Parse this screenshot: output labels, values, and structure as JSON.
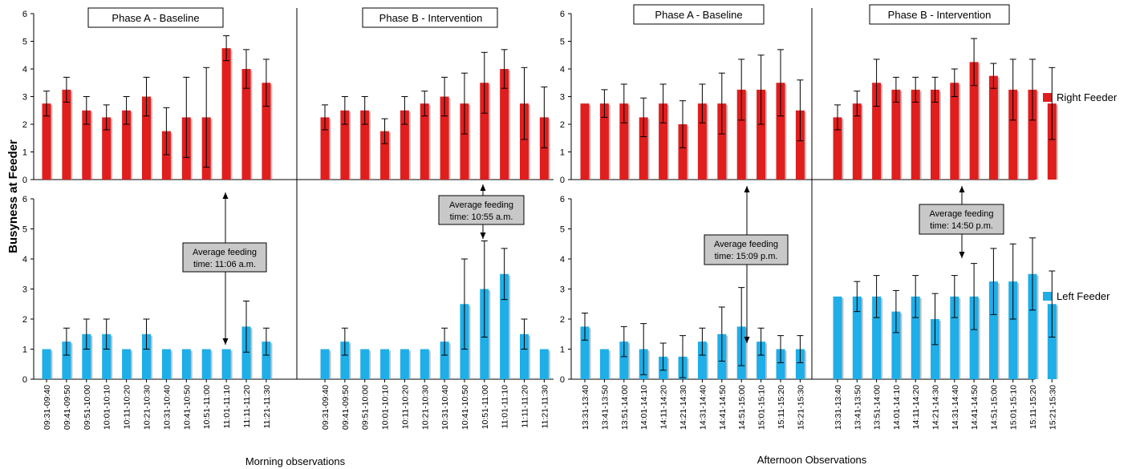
{
  "labels": {
    "ylabel": "Busyness at Feeder",
    "morning_xlabel": "Morning observations",
    "afternoon_xlabel": "Afternoon Observations",
    "phase_a": "Phase A - Baseline",
    "phase_b": "Phase B - Intervention",
    "legend_right": "Right Feeder",
    "legend_left": "Left Feeder"
  },
  "colors": {
    "right_feeder": "#e01e1e",
    "left_feeder": "#1eaee8",
    "annotation_fill": "#c8c8c8"
  },
  "y_ticks": [
    "0",
    "1",
    "2",
    "3",
    "4",
    "5",
    "6"
  ],
  "annotations": {
    "morning_a": [
      "Average feeding",
      "time: 11:06 a.m."
    ],
    "morning_b": [
      "Average feeding",
      "time: 10:55 a.m."
    ],
    "afternoon_a": [
      "Average feeding",
      "time: 15:09 p.m."
    ],
    "afternoon_b": [
      "Average feeding",
      "time: 14:50 p.m."
    ]
  },
  "chart_data": [
    {
      "type": "bar",
      "name": "morning",
      "ylim": [
        0,
        6
      ],
      "grid": false,
      "legend_position": "right",
      "phase_a": {
        "categories": [
          "09:31-09:40",
          "09:41-09:50",
          "09:51-10:00",
          "10:01-10:10",
          "10:11-10:20",
          "10:21-10:30",
          "10:31-10:40",
          "10:41-10:50",
          "10:51-11:00",
          "11:01-11:10",
          "11:11-11:20",
          "11:21-11:30"
        ],
        "series": [
          {
            "name": "Right Feeder",
            "values": [
              2.75,
              3.25,
              2.5,
              2.25,
              2.5,
              3.0,
              1.75,
              2.25,
              2.25,
              4.75,
              4.0,
              3.5
            ],
            "error": [
              0.45,
              0.45,
              0.5,
              0.45,
              0.5,
              0.7,
              0.85,
              1.45,
              1.8,
              0.45,
              0.7,
              0.85
            ]
          },
          {
            "name": "Left Feeder",
            "values": [
              1.0,
              1.25,
              1.5,
              1.5,
              1.0,
              1.5,
              1.0,
              1.0,
              1.0,
              1.0,
              1.75,
              1.25
            ],
            "error": [
              0.0,
              0.45,
              0.5,
              0.5,
              0.0,
              0.5,
              0.0,
              0.0,
              0.0,
              0.0,
              0.85,
              0.45
            ]
          }
        ]
      },
      "phase_b": {
        "categories": [
          "09:31-09:40",
          "09:41-09:50",
          "09:51-10:00",
          "10:01-10:10",
          "10:11-10:20",
          "10:21-10:30",
          "10:31-10:40",
          "10:41-10:50",
          "10:51-11:00",
          "11:01-11:10",
          "11:11-11:20",
          "11:21-11:30"
        ],
        "series": [
          {
            "name": "Right Feeder",
            "values": [
              2.25,
              2.5,
              2.5,
              1.75,
              2.5,
              2.75,
              3.0,
              2.75,
              3.5,
              4.0,
              2.75,
              2.25
            ],
            "error": [
              0.45,
              0.5,
              0.5,
              0.45,
              0.5,
              0.45,
              0.7,
              1.1,
              1.1,
              0.7,
              1.3,
              1.1
            ]
          },
          {
            "name": "Left Feeder",
            "values": [
              1.0,
              1.25,
              1.0,
              1.0,
              1.0,
              1.0,
              1.25,
              2.5,
              3.0,
              3.5,
              1.5,
              1.0
            ],
            "error": [
              0.0,
              0.45,
              0.0,
              0.0,
              0.0,
              0.0,
              0.45,
              1.5,
              1.6,
              0.85,
              0.5,
              0.0
            ]
          }
        ]
      }
    },
    {
      "type": "bar",
      "name": "afternoon",
      "ylim": [
        0,
        6
      ],
      "grid": false,
      "legend_position": "right",
      "phase_a": {
        "categories": [
          "13:31-13:40",
          "13:41-13:50",
          "13:51-14:00",
          "14:01-14:10",
          "14:11-14:20",
          "14:21-14:30",
          "14:31-14:40",
          "14:41-14:50",
          "14:51-15:00",
          "15:01-15:10",
          "15:11-15:20",
          "15:21-15:30"
        ],
        "series": [
          {
            "name": "Right Feeder",
            "values": [
              2.75,
              2.75,
              2.75,
              2.25,
              2.75,
              2.0,
              2.75,
              2.75,
              3.25,
              3.25,
              3.5,
              2.5
            ],
            "error": [
              0.0,
              0.5,
              0.7,
              0.7,
              0.7,
              0.85,
              0.7,
              1.1,
              1.1,
              1.25,
              1.2,
              1.1
            ]
          },
          {
            "name": "Left Feeder",
            "values": [
              1.75,
              1.0,
              1.25,
              1.0,
              0.75,
              0.75,
              1.25,
              1.5,
              1.75,
              1.25,
              1.0,
              1.0
            ],
            "error": [
              0.45,
              0.0,
              0.5,
              0.85,
              0.45,
              0.7,
              0.45,
              0.9,
              1.3,
              0.45,
              0.45,
              0.45
            ]
          }
        ]
      },
      "phase_b": {
        "categories": [
          "13:31-13:40",
          "13:41-13:50",
          "13:51-14:00",
          "14:01-14:10",
          "14:11-14:20",
          "14:21-14:30",
          "14:31-14:40",
          "14:41-14:50",
          "14:51-15:00",
          "15:01-15:10",
          "15:11-15:20",
          "15:21-15:30"
        ],
        "series": [
          {
            "name": "Right Feeder",
            "values": [
              2.25,
              2.75,
              3.5,
              3.25,
              3.25,
              3.25,
              3.5,
              4.25,
              3.75,
              3.25,
              3.25,
              2.75
            ],
            "error": [
              0.45,
              0.45,
              0.85,
              0.45,
              0.45,
              0.45,
              0.5,
              0.85,
              0.45,
              1.1,
              1.1,
              1.3
            ]
          },
          {
            "name": "Left Feeder",
            "values": [
              2.75,
              2.75,
              2.75,
              2.25,
              2.75,
              2.0,
              2.75,
              2.75,
              3.25,
              3.25,
              3.5,
              2.5
            ],
            "error": [
              0.0,
              0.5,
              0.7,
              0.7,
              0.7,
              0.85,
              0.7,
              1.1,
              1.1,
              1.25,
              1.2,
              1.1
            ]
          }
        ]
      }
    }
  ]
}
